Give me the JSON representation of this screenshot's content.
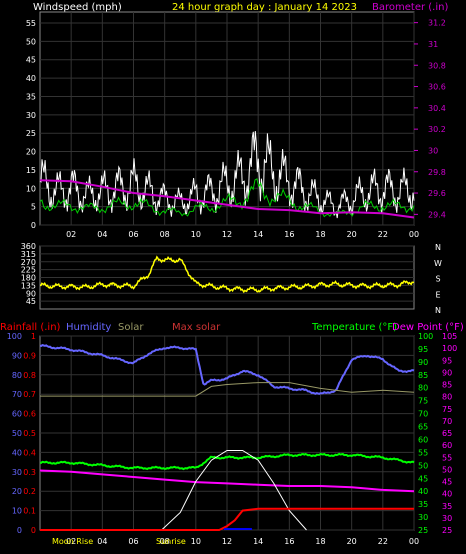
{
  "header": {
    "windspeed_label": "Windspeed (mph)",
    "title": "24 hour graph day : January 14 2023",
    "barometer_label": "Barometer (.in)"
  },
  "legend2": {
    "rainfall": "Rainfall (.in)",
    "humidity": "Humidity",
    "solar": "Solar",
    "max_solar": "Max solar",
    "temperature": "Temperature (°F)",
    "dew_point": "Dew Point (°F)"
  },
  "bottom_labels": {
    "moonrise": "Moon Rise",
    "sunrise": "Sunrise"
  },
  "colors": {
    "windspeed": "#ffffff",
    "gust_avg": "#00cc00",
    "barometer": "#cc00cc",
    "direction": "#ffff00",
    "rainfall": "#ff0000",
    "humidity": "#6666ff",
    "solar": "#999966",
    "max_solar": "#ffffff",
    "temperature": "#00ff00",
    "dew_point": "#ff00ff",
    "rain_rate": "#0000ff"
  },
  "chart_data": [
    {
      "type": "line",
      "title": "24 hour graph day : January 14 2023",
      "x_ticks": [
        "02",
        "04",
        "06",
        "08",
        "10",
        "12",
        "14",
        "16",
        "18",
        "20",
        "22",
        "00"
      ],
      "left_axis": {
        "label": "Windspeed (mph)",
        "ticks": [
          0,
          5,
          10,
          15,
          20,
          25,
          30,
          35,
          40,
          45,
          50,
          55
        ],
        "range": [
          0,
          58
        ]
      },
      "right_axis": {
        "label": "Barometer (.in)",
        "ticks": [
          "29.4",
          "29.6",
          "29.8",
          "30",
          "30.2",
          "30.4",
          "30.6",
          "30.8",
          "31",
          "31.2"
        ],
        "range": [
          29.3,
          31.3
        ]
      },
      "series": [
        {
          "name": "Windspeed",
          "hours": [
            0,
            1,
            2,
            3,
            4,
            5,
            6,
            7,
            8,
            9,
            10,
            11,
            12,
            13,
            14,
            15,
            16,
            17,
            18,
            19,
            20,
            21,
            22,
            23,
            24
          ],
          "values": [
            12,
            9,
            10,
            8,
            9,
            10,
            11,
            9,
            7,
            6,
            8,
            9,
            11,
            13,
            18,
            14,
            12,
            9,
            7,
            5,
            7,
            9,
            10,
            9,
            10
          ]
        },
        {
          "name": "Barometer",
          "hours": [
            0,
            2,
            4,
            6,
            8,
            10,
            12,
            14,
            16,
            18,
            20,
            22,
            24
          ],
          "values": [
            29.72,
            29.71,
            29.66,
            29.6,
            29.57,
            29.53,
            29.49,
            29.45,
            29.44,
            29.41,
            29.42,
            29.41,
            29.37
          ]
        }
      ]
    },
    {
      "type": "line",
      "left_ticks": [
        "360",
        "315",
        "270",
        "225",
        "180",
        "135",
        "90",
        "45"
      ],
      "right_labels": [
        "N",
        "W",
        "S",
        "E",
        "N"
      ],
      "series": [
        {
          "name": "Wind direction",
          "hours": [
            0,
            1,
            2,
            3,
            4,
            5,
            6,
            7,
            7.5,
            8,
            9,
            10,
            11,
            12,
            13,
            14,
            15,
            16,
            17,
            18,
            19,
            20,
            21,
            22,
            23,
            24
          ],
          "values": [
            135,
            130,
            128,
            125,
            140,
            135,
            130,
            200,
            290,
            280,
            280,
            145,
            130,
            118,
            112,
            110,
            118,
            125,
            128,
            138,
            142,
            135,
            132,
            135,
            138,
            160
          ]
        }
      ]
    },
    {
      "type": "line",
      "left_axis_rain": {
        "ticks": [
          "1",
          "0.9",
          "0.8",
          "0.7",
          "0.6",
          "0.5",
          "0.4",
          "0.3",
          "0.2",
          "0.1",
          "0"
        ]
      },
      "left_axis_humidity": {
        "ticks": [
          "100",
          "90",
          "80",
          "70",
          "60",
          "50",
          "40",
          "30",
          "20",
          "10",
          "0"
        ]
      },
      "right_axis_temp": {
        "ticks": [
          "100",
          "95",
          "90",
          "85",
          "80",
          "75",
          "70",
          "65",
          "60",
          "55",
          "50",
          "45",
          "40",
          "35",
          "30",
          "25"
        ]
      },
      "right_axis_dew": {
        "ticks": [
          "105",
          "100",
          "95",
          "90",
          "85",
          "80",
          "75",
          "70",
          "65",
          "60",
          "55",
          "50",
          "45",
          "40",
          "35",
          "30",
          "25"
        ]
      },
      "series": [
        {
          "name": "Humidity",
          "hours": [
            0,
            1,
            2,
            4,
            6,
            7,
            8,
            9,
            10,
            10.5,
            11,
            12,
            13,
            14,
            15,
            16,
            17,
            18,
            19,
            20,
            21,
            22,
            23,
            24
          ],
          "values": [
            95,
            94,
            93,
            90,
            86,
            91,
            94,
            94,
            93,
            75,
            77,
            78,
            82,
            80,
            74,
            73,
            72,
            70,
            72,
            88,
            90,
            88,
            82,
            82
          ]
        },
        {
          "name": "Temperature",
          "hours": [
            0,
            2,
            4,
            6,
            8,
            10,
            11,
            12,
            14,
            16,
            18,
            20,
            22,
            23,
            24
          ],
          "values": [
            51,
            51,
            50,
            49,
            49,
            49,
            53,
            53,
            53,
            54,
            54,
            54,
            53,
            52,
            51
          ]
        },
        {
          "name": "Dew point",
          "hours": [
            0,
            2,
            4,
            6,
            8,
            10,
            12,
            14,
            16,
            18,
            20,
            22,
            24
          ],
          "values": [
            48,
            47.5,
            46.5,
            45.5,
            44.5,
            43.5,
            43,
            42.5,
            42,
            42,
            41.5,
            40.5,
            40
          ]
        },
        {
          "name": "Solar",
          "hours": [
            0,
            10,
            11,
            12,
            14,
            16,
            18,
            20,
            22,
            24
          ],
          "values": [
            0.69,
            0.69,
            0.74,
            0.75,
            0.76,
            0.76,
            0.73,
            0.71,
            0.72,
            0.71
          ]
        },
        {
          "name": "Max solar",
          "hours": [
            7.8,
            9,
            10,
            11,
            12,
            13,
            14,
            15,
            16,
            17.1
          ],
          "values": [
            0,
            0.09,
            0.25,
            0.36,
            0.41,
            0.41,
            0.36,
            0.24,
            0.1,
            0
          ]
        },
        {
          "name": "Rainfall",
          "hours": [
            0,
            11.5,
            12,
            12.5,
            13,
            14,
            15,
            16,
            17,
            18,
            19,
            20,
            21,
            22,
            23,
            24
          ],
          "values": [
            0,
            0,
            0.02,
            0.05,
            0.1,
            0.11,
            0.11,
            0.11,
            0.11,
            0.11,
            0.11,
            0.11,
            0.11,
            0.11,
            0.11,
            0.11
          ]
        }
      ]
    }
  ]
}
